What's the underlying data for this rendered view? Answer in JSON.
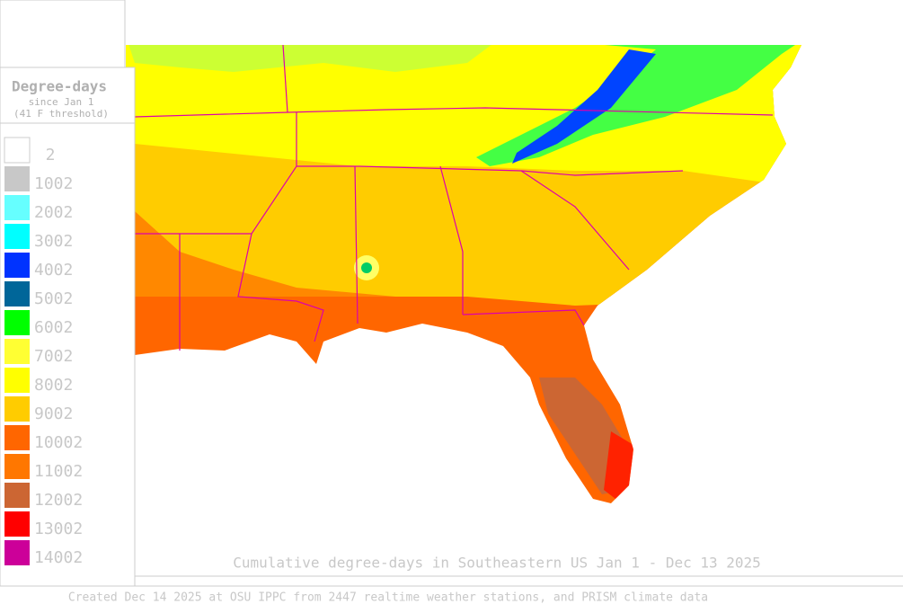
{
  "legend": {
    "title": "Degree-days",
    "subtitle": [
      "since Jan 1",
      "(41 F threshold)"
    ],
    "items": [
      {
        "label": "2",
        "color": "#ffffff"
      },
      {
        "label": "1002",
        "color": "#c8c8c8"
      },
      {
        "label": "2002",
        "color": "#66ffff"
      },
      {
        "label": "3002",
        "color": "#00ffff"
      },
      {
        "label": "4002",
        "color": "#0033ff"
      },
      {
        "label": "5002",
        "color": "#006699"
      },
      {
        "label": "6002",
        "color": "#00ff00"
      },
      {
        "label": "7002",
        "color": "#ffff33"
      },
      {
        "label": "8002",
        "color": "#ffff00"
      },
      {
        "label": "9002",
        "color": "#ffcc00"
      },
      {
        "label": "10002",
        "color": "#ff6600"
      },
      {
        "label": "11002",
        "color": "#ff7700"
      },
      {
        "label": "12002",
        "color": "#cc6633"
      },
      {
        "label": "13002",
        "color": "#ff0000"
      },
      {
        "label": "14002",
        "color": "#cc0099"
      }
    ]
  },
  "caption": "Cumulative degree-days in Southeastern US Jan 1 - Dec 13 2025",
  "footer": "Created Dec 14 2025 at OSU IPPC from 2447 realtime weather stations, and PRISM climate data"
}
